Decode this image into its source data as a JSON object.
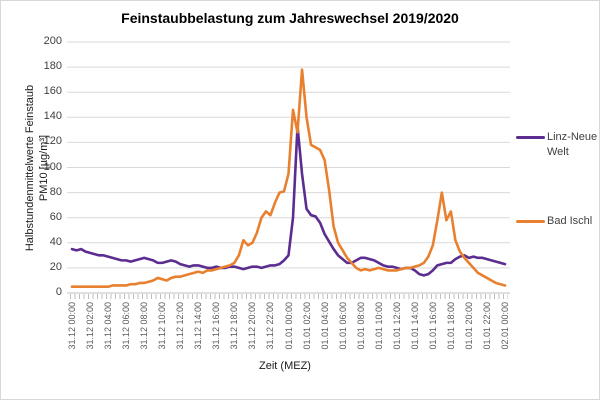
{
  "chart_data": {
    "type": "line",
    "title": "Feinstaubbelastung zum Jahreswechsel 2019/2020",
    "xlabel": "Zeit (MEZ)",
    "ylabel": "Halbstundenmittelwerte Feinstaub PM10 [µg/m³]",
    "ylabel_line1": "Halbstundenmittelwerte Feinstaub",
    "ylabel_line2": "PM10 [µg/m³]",
    "ylim": [
      0,
      200
    ],
    "yticks": [
      0,
      20,
      40,
      60,
      80,
      100,
      120,
      140,
      160,
      180,
      200
    ],
    "grid": true,
    "legend_position": "right",
    "x_start": "31.12 00:00",
    "x_end": "02.01 00:00",
    "x_step_minutes": 30,
    "x_tick_labels": [
      "31.12 00:00",
      "31.12 02:00",
      "31.12 04:00",
      "31.12 06:00",
      "31.12 08:00",
      "31.12 10:00",
      "31.12 12:00",
      "31.12 14:00",
      "31.12 16:00",
      "31.12 18:00",
      "31.12 20:00",
      "31.12 22:00",
      "01.01 00:00",
      "01.01 02:00",
      "01.01 04:00",
      "01.01 06:00",
      "01.01 08:00",
      "01.01 10:00",
      "01.01 12:00",
      "01.01 14:00",
      "01.01 16:00",
      "01.01 18:00",
      "01.01 20:00",
      "01.01 22:00",
      "02.01 00:00"
    ],
    "series": [
      {
        "name": "Linz-Neue Welt",
        "color": "#5b2d90",
        "values": [
          35,
          34,
          35,
          33,
          32,
          31,
          30,
          30,
          29,
          28,
          27,
          26,
          26,
          25,
          26,
          27,
          28,
          27,
          26,
          24,
          24,
          25,
          26,
          25,
          23,
          22,
          21,
          22,
          22,
          21,
          20,
          20,
          21,
          20,
          20,
          21,
          21,
          20,
          19,
          20,
          21,
          21,
          20,
          21,
          22,
          22,
          23,
          26,
          30,
          60,
          133,
          95,
          67,
          62,
          61,
          56,
          47,
          41,
          35,
          30,
          27,
          24,
          24,
          26,
          28,
          28,
          27,
          26,
          24,
          22,
          21,
          21,
          20,
          19,
          20,
          20,
          18,
          15,
          14,
          15,
          18,
          22,
          23,
          24,
          24,
          27,
          29,
          30,
          28,
          29,
          28,
          28,
          27,
          26,
          25,
          24,
          23
        ]
      },
      {
        "name": "Bad Ischl",
        "color": "#e8802f",
        "values": [
          5,
          5,
          5,
          5,
          5,
          5,
          5,
          5,
          5,
          6,
          6,
          6,
          6,
          7,
          7,
          8,
          8,
          9,
          10,
          12,
          11,
          10,
          12,
          13,
          13,
          14,
          15,
          16,
          17,
          16,
          18,
          18,
          19,
          20,
          21,
          22,
          24,
          30,
          42,
          38,
          40,
          48,
          60,
          65,
          62,
          72,
          80,
          81,
          95,
          146,
          128,
          178,
          140,
          118,
          116,
          114,
          106,
          82,
          53,
          40,
          34,
          28,
          24,
          20,
          18,
          19,
          18,
          19,
          20,
          19,
          18,
          18,
          18,
          19,
          20,
          20,
          21,
          22,
          24,
          29,
          38,
          58,
          80,
          58,
          65,
          42,
          33,
          28,
          24,
          20,
          16,
          14,
          12,
          10,
          8,
          7,
          6
        ]
      }
    ]
  }
}
